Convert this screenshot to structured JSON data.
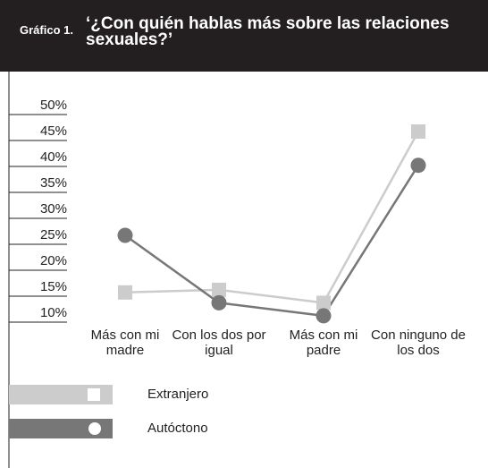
{
  "chart_data": {
    "type": "line",
    "label": "Gráfico 1.",
    "title": "‘¿Con quién hablas más sobre las relaciones sexuales?’",
    "categories": [
      "Más con mi madre",
      "Con los dos por igual",
      "Más con mi padre",
      "Con ninguno de los dos"
    ],
    "series": [
      {
        "name": "Extranjero",
        "color": "#cccccc",
        "marker": "square",
        "values": [
          14,
          14.5,
          12,
          45
        ]
      },
      {
        "name": "Autóctono",
        "color": "#777777",
        "marker": "circle",
        "values": [
          25,
          12,
          9.5,
          38.5
        ]
      }
    ],
    "ylim": [
      10,
      50
    ],
    "yticks": [
      {
        "value": 10,
        "label": "10%"
      },
      {
        "value": 15,
        "label": "15%"
      },
      {
        "value": 20,
        "label": "20%"
      },
      {
        "value": 25,
        "label": "25%"
      },
      {
        "value": 30,
        "label": "30%"
      },
      {
        "value": 35,
        "label": "35%"
      },
      {
        "value": 40,
        "label": "40%"
      },
      {
        "value": 45,
        "label": "45%"
      },
      {
        "value": 50,
        "label": "50%"
      }
    ]
  }
}
